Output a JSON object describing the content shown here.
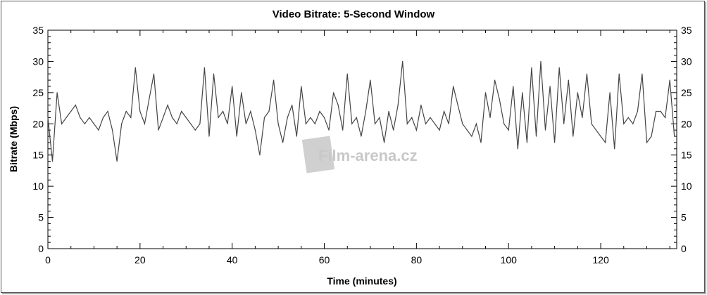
{
  "chart_data": {
    "type": "line",
    "title": "Video Bitrate: 5-Second Window",
    "xlabel": "Time (minutes)",
    "ylabel": "Bitrate (Mbps)",
    "xlim": [
      0,
      136.5
    ],
    "ylim": [
      0,
      35
    ],
    "xticks": [
      "0",
      "20",
      "40",
      "60",
      "80",
      "100",
      "120"
    ],
    "yticks": [
      "0",
      "5",
      "10",
      "15",
      "20",
      "25",
      "30",
      "35"
    ],
    "right_axis_mirrored": true,
    "grid": false,
    "series_color": "#444444",
    "x_step_minutes": 1,
    "values": [
      21,
      14,
      25,
      20,
      21,
      22,
      23,
      21,
      20,
      21,
      20,
      19,
      21,
      22,
      19,
      14,
      20,
      22,
      21,
      29,
      22,
      20,
      24,
      28,
      19,
      21,
      23,
      21,
      20,
      22,
      21,
      20,
      19,
      20,
      29,
      18,
      28,
      21,
      22,
      20,
      26,
      18,
      25,
      20,
      22,
      19,
      15,
      21,
      22,
      27,
      20,
      17,
      21,
      23,
      18,
      26,
      20,
      21,
      20,
      22,
      21,
      19,
      25,
      23,
      19,
      28,
      20,
      21,
      18,
      22,
      27,
      20,
      21,
      17,
      22,
      19,
      23,
      30,
      20,
      21,
      19,
      23,
      20,
      21,
      20,
      19,
      22,
      20,
      26,
      23,
      20,
      19,
      18,
      20,
      17,
      25,
      21,
      27,
      24,
      20,
      19,
      26,
      16,
      25,
      17,
      29,
      18,
      30,
      19,
      26,
      17,
      29,
      20,
      27,
      18,
      25,
      21,
      28,
      20,
      19,
      18,
      17,
      25,
      16,
      28,
      20,
      21,
      20,
      22,
      28,
      17,
      18,
      22,
      22,
      21,
      27,
      18
    ]
  },
  "watermark": "Film-arena.cz"
}
